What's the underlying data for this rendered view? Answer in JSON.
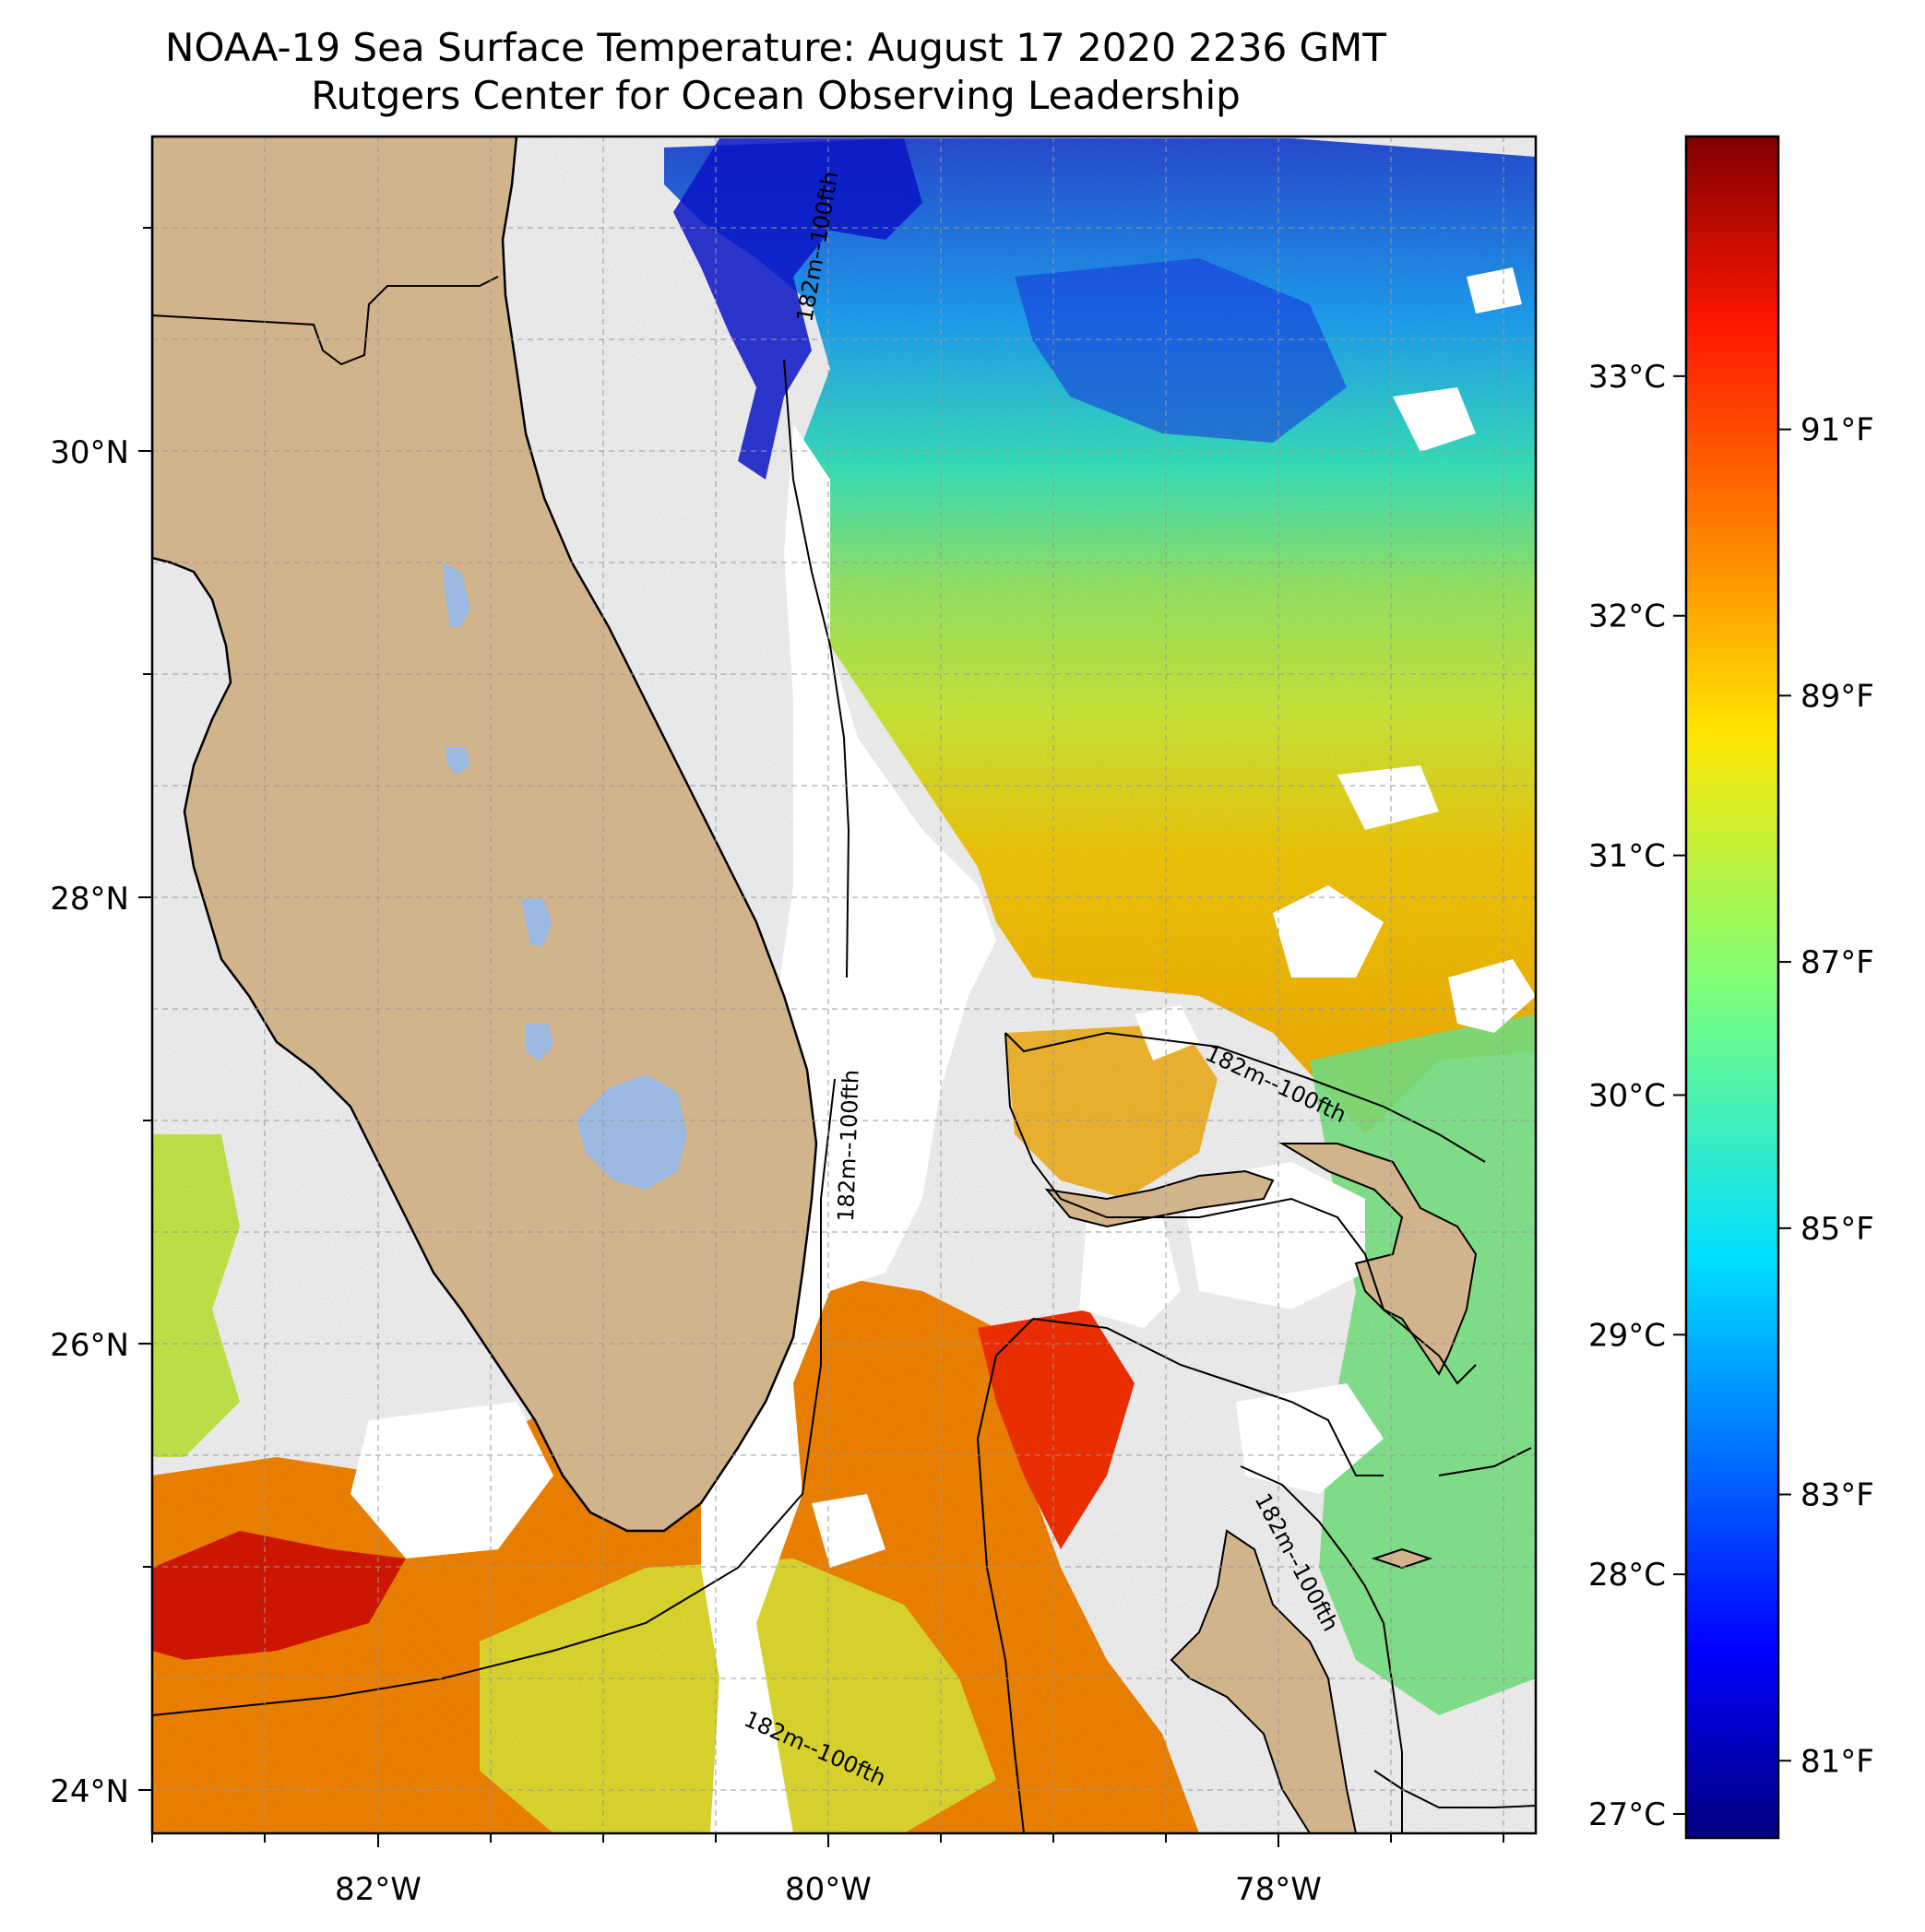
{
  "header": {
    "title": "NOAA-19 Sea Surface Temperature: August 17 2020 2236 GMT",
    "subtitle": "Rutgers Center for Ocean Observing Leadership"
  },
  "map": {
    "projection": "PlateCarree",
    "extent": {
      "lon_min": -83.0,
      "lon_max": -76.85,
      "lat_min": 23.8,
      "lat_max": 31.4
    },
    "grid": true,
    "lat_labels": [
      "24°N",
      "26°N",
      "28°N",
      "30°N"
    ],
    "lon_labels": [
      "82°W",
      "80°W",
      "78°W"
    ],
    "isobath_labels": [
      "182m--100fth",
      "182m--100fth",
      "182m--100fth",
      "182m--100fth",
      "182m--100fth"
    ],
    "colors": {
      "land": "#d2b48c",
      "lake": "#9bb8e0",
      "cloud_mask": "#ffffff"
    }
  },
  "colorbar": {
    "colormap": "jet",
    "range_c": [
      26.9,
      34.0
    ],
    "celsius_ticks": [
      "27°C",
      "28°C",
      "29°C",
      "30°C",
      "31°C",
      "32°C",
      "33°C"
    ],
    "fahrenheit_ticks": [
      "81°F",
      "83°F",
      "85°F",
      "87°F",
      "89°F",
      "91°F"
    ],
    "celsius_values": [
      27,
      28,
      29,
      30,
      31,
      32,
      33
    ],
    "fahrenheit_values": [
      81,
      83,
      85,
      87,
      89,
      91
    ]
  }
}
